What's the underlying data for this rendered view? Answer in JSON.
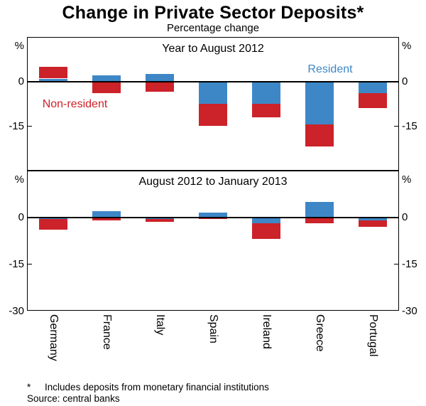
{
  "title": "Change in Private Sector Deposits*",
  "subtitle": "Percentage change",
  "colors": {
    "resident": "#3E87C7",
    "non_resident": "#CC2229",
    "axis": "#000000",
    "background": "#FFFFFF"
  },
  "footnote": {
    "marker": "*",
    "text": "Includes deposits from monetary financial institutions",
    "source": "Source: central banks"
  },
  "chart_data": [
    {
      "type": "bar",
      "stacked": true,
      "panel_title": "Year to August 2012",
      "unit": "%",
      "ylim": [
        -30,
        15
      ],
      "yticks": [
        0,
        -15
      ],
      "grid": false,
      "categories": [
        "Germany",
        "France",
        "Italy",
        "Spain",
        "Ireland",
        "Greece",
        "Portugal"
      ],
      "series": [
        {
          "name": "Resident",
          "color_key": "resident",
          "values": [
            1,
            2,
            2.5,
            -7.5,
            -7.5,
            -14.5,
            -4
          ]
        },
        {
          "name": "Non-resident",
          "color_key": "non_resident",
          "values": [
            4,
            -4,
            -3.5,
            -7.5,
            -4.5,
            -7.5,
            -5
          ]
        }
      ],
      "annotations": [
        {
          "text": "Resident",
          "color_key": "resident"
        },
        {
          "text": "Non-resident",
          "color_key": "non_resident"
        }
      ]
    },
    {
      "type": "bar",
      "stacked": true,
      "panel_title": "August 2012 to January 2013",
      "unit": "%",
      "ylim": [
        -30,
        15
      ],
      "yticks": [
        0,
        -15,
        -30
      ],
      "grid": false,
      "categories": [
        "Germany",
        "France",
        "Italy",
        "Spain",
        "Ireland",
        "Greece",
        "Portugal"
      ],
      "series": [
        {
          "name": "Resident",
          "color_key": "resident",
          "values": [
            -0.5,
            2,
            -0.5,
            1.5,
            -2,
            5,
            -1
          ]
        },
        {
          "name": "Non-resident",
          "color_key": "non_resident",
          "values": [
            -3.5,
            -1,
            -1,
            -0.5,
            -5,
            -2,
            -2
          ]
        }
      ],
      "annotations": []
    }
  ]
}
